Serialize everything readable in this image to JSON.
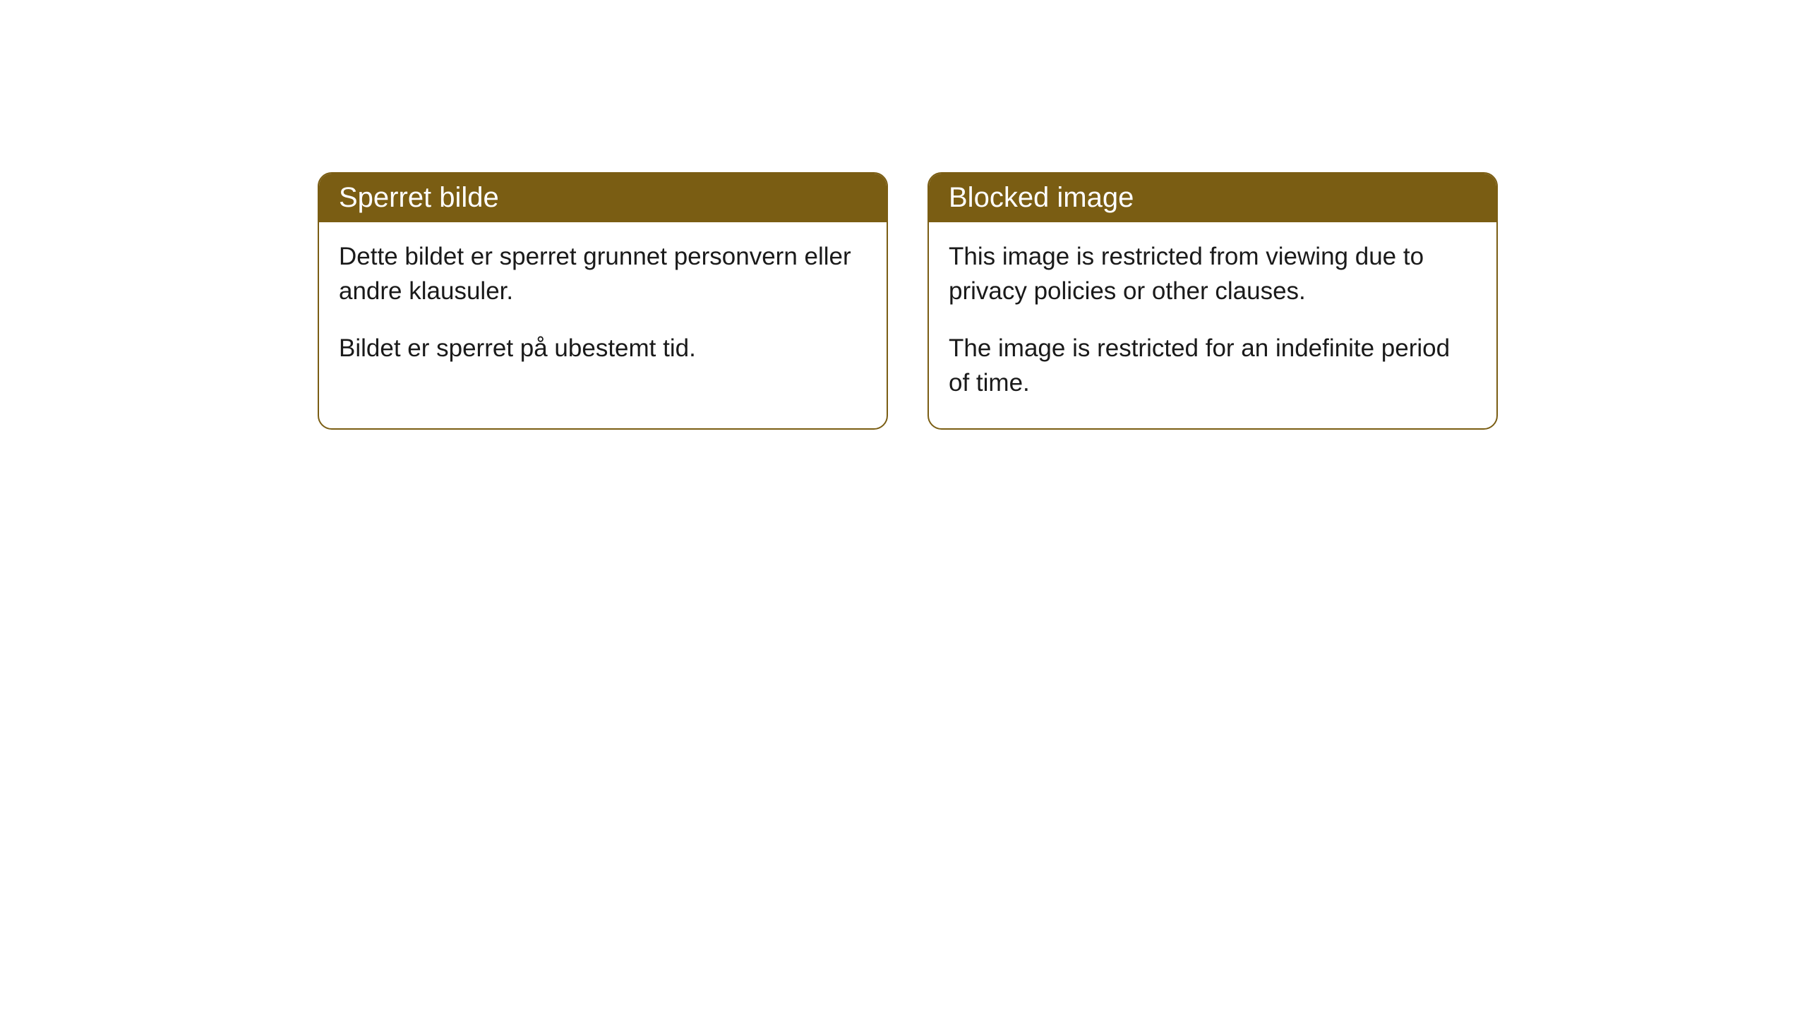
{
  "cards": [
    {
      "title": "Sperret bilde",
      "paragraph1": "Dette bildet er sperret grunnet personvern eller andre klausuler.",
      "paragraph2": "Bildet er sperret på ubestemt tid."
    },
    {
      "title": "Blocked image",
      "paragraph1": "This image is restricted from viewing due to privacy policies or other clauses.",
      "paragraph2": "The image is restricted for an indefinite period of time."
    }
  ],
  "style": {
    "header_background": "#7a5d13",
    "header_text_color": "#ffffff",
    "border_color": "#7a5d13",
    "body_background": "#ffffff",
    "body_text_color": "#1a1a1a",
    "border_radius": 20,
    "title_fontsize": 40,
    "body_fontsize": 35
  }
}
